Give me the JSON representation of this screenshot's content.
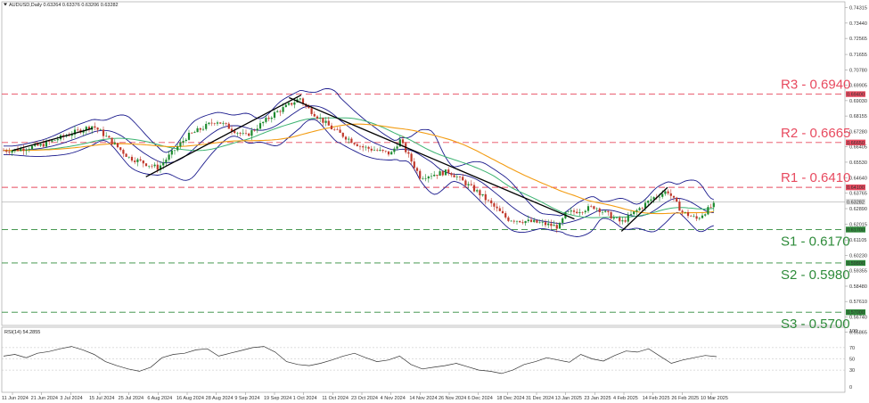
{
  "header": {
    "symbol_line": "AUDUSD,Daily  0.63264 0.63376 0.63206 0.63282",
    "rsi_line": "RSI(14) 54.2855"
  },
  "colors": {
    "bull": "#1c8a2e",
    "bear": "#c0392b",
    "bands": "#1a1a8c",
    "ma_slow": "#f39c12",
    "ma_mid": "#3cb371",
    "resistance": "#e84a5f",
    "support": "#2e8b3a",
    "trend": "#000000",
    "rsi": "#333333"
  },
  "levels": {
    "resistance": [
      {
        "label": "R3 - 0.6940",
        "value": 0.694,
        "tag": "0.69400"
      },
      {
        "label": "R2 - 0.6665",
        "value": 0.6665,
        "tag": "0.66650"
      },
      {
        "label": "R1 - 0.6410",
        "value": 0.641,
        "tag": "0.64100"
      }
    ],
    "support": [
      {
        "label": "S1 - 0.6170",
        "value": 0.617,
        "tag": "0.61700"
      },
      {
        "label": "S2 - 0.5980",
        "value": 0.598,
        "tag": "0.59800"
      },
      {
        "label": "S3 - 0.5700",
        "value": 0.57,
        "tag": "0.57000"
      }
    ]
  },
  "current_price": {
    "value": 0.63282,
    "tag": "0.63282"
  },
  "chart_data": {
    "type": "candlestick",
    "title": "AUDUSD,Daily",
    "ylim": [
      0.5625,
      0.7465
    ],
    "y_ticks": [
      "0.74315",
      "0.73440",
      "0.72565",
      "0.71655",
      "0.70780",
      "0.69905",
      "0.69030",
      "0.68155",
      "0.67280",
      "0.66405",
      "0.65530",
      "0.64640",
      "0.63765",
      "0.62890",
      "0.62015",
      "0.61105",
      "0.60230",
      "0.59355",
      "0.58480",
      "0.57610",
      "0.56740",
      "0.55865"
    ],
    "x_ticks": [
      "11 Jun 2024",
      "21 Jun 2024",
      "3 Jul 2024",
      "15 Jul 2024",
      "25 Jul 2024",
      "6 Aug 2024",
      "16 Aug 2024",
      "28 Aug 2024",
      "9 Sep 2024",
      "19 Sep 2024",
      "1 Oct 2024",
      "11 Oct 2024",
      "23 Oct 2024",
      "4 Nov 2024",
      "14 Nov 2024",
      "26 Nov 2024",
      "6 Dec 2024",
      "18 Dec 2024",
      "31 Dec 2024",
      "13 Jan 2025",
      "23 Jan 2025",
      "4 Feb 2025",
      "14 Feb 2025",
      "26 Feb 2025",
      "10 Mar 2025"
    ],
    "close_path": [
      {
        "date": "11 Jun 2024",
        "close": 0.662
      },
      {
        "date": "21 Jun 2024",
        "close": 0.665
      },
      {
        "date": "3 Jul 2024",
        "close": 0.6715
      },
      {
        "date": "12 Jul 2024",
        "close": 0.676
      },
      {
        "date": "15 Jul 2024",
        "close": 0.673
      },
      {
        "date": "25 Jul 2024",
        "close": 0.658
      },
      {
        "date": "6 Aug 2024",
        "close": 0.652
      },
      {
        "date": "16 Aug 2024",
        "close": 0.67
      },
      {
        "date": "28 Aug 2024",
        "close": 0.679
      },
      {
        "date": "9 Sep 2024",
        "close": 0.67
      },
      {
        "date": "19 Sep 2024",
        "close": 0.683
      },
      {
        "date": "30 Sep 2024",
        "close": 0.692
      },
      {
        "date": "1 Oct 2024",
        "close": 0.688
      },
      {
        "date": "11 Oct 2024",
        "close": 0.674
      },
      {
        "date": "23 Oct 2024",
        "close": 0.664
      },
      {
        "date": "4 Nov 2024",
        "close": 0.66
      },
      {
        "date": "7 Nov 2024",
        "close": 0.668
      },
      {
        "date": "14 Nov 2024",
        "close": 0.647
      },
      {
        "date": "26 Nov 2024",
        "close": 0.65
      },
      {
        "date": "6 Dec 2024",
        "close": 0.638
      },
      {
        "date": "18 Dec 2024",
        "close": 0.623
      },
      {
        "date": "31 Dec 2024",
        "close": 0.621
      },
      {
        "date": "10 Jan 2025",
        "close": 0.6185
      },
      {
        "date": "13 Jan 2025",
        "close": 0.626
      },
      {
        "date": "23 Jan 2025",
        "close": 0.63
      },
      {
        "date": "3 Feb 2025",
        "close": 0.621
      },
      {
        "date": "14 Feb 2025",
        "close": 0.635
      },
      {
        "date": "20 Feb 2025",
        "close": 0.639
      },
      {
        "date": "26 Feb 2025",
        "close": 0.627
      },
      {
        "date": "4 Mar 2025",
        "close": 0.623
      },
      {
        "date": "10 Mar 2025",
        "close": 0.63
      },
      {
        "date": "14 Mar 2025",
        "close": 0.63282
      }
    ],
    "rsi": {
      "label": "RSI(14) 54.2855",
      "ylim": [
        0,
        100
      ],
      "y_ticks": [
        "100",
        "70",
        "50",
        "30",
        "0"
      ],
      "path": [
        55,
        58,
        52,
        60,
        63,
        68,
        72,
        66,
        58,
        45,
        38,
        32,
        28,
        35,
        52,
        58,
        60,
        66,
        68,
        55,
        60,
        65,
        70,
        72,
        62,
        45,
        40,
        38,
        42,
        48,
        55,
        60,
        52,
        45,
        48,
        55,
        40,
        32,
        35,
        38,
        42,
        36,
        30,
        28,
        24,
        30,
        40,
        45,
        52,
        48,
        44,
        58,
        50,
        46,
        56,
        64,
        62,
        68,
        55,
        42,
        48,
        52,
        56,
        54
      ]
    }
  }
}
